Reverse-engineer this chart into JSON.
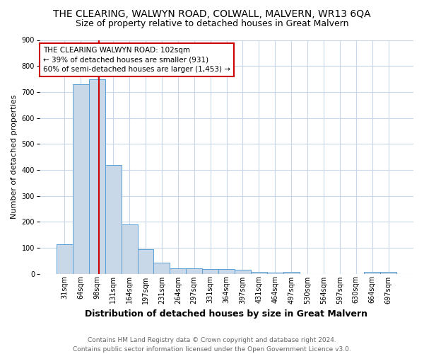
{
  "title": "THE CLEARING, WALWYN ROAD, COLWALL, MALVERN, WR13 6QA",
  "subtitle": "Size of property relative to detached houses in Great Malvern",
  "xlabel": "Distribution of detached houses by size in Great Malvern",
  "ylabel": "Number of detached properties",
  "categories": [
    "31sqm",
    "64sqm",
    "98sqm",
    "131sqm",
    "164sqm",
    "197sqm",
    "231sqm",
    "264sqm",
    "297sqm",
    "331sqm",
    "364sqm",
    "397sqm",
    "431sqm",
    "464sqm",
    "497sqm",
    "530sqm",
    "564sqm",
    "597sqm",
    "630sqm",
    "664sqm",
    "697sqm"
  ],
  "values": [
    113,
    730,
    750,
    420,
    190,
    95,
    43,
    20,
    20,
    18,
    18,
    15,
    8,
    3,
    8,
    0,
    0,
    0,
    0,
    8,
    8
  ],
  "bar_color": "#c8d8e8",
  "bar_edge_color": "#5a9fd4",
  "grid_color": "#c8d8e8",
  "red_line_x": 2.1,
  "annotation_text": "THE CLEARING WALWYN ROAD: 102sqm\n← 39% of detached houses are smaller (931)\n60% of semi-detached houses are larger (1,453) →",
  "annotation_box_color": "#ffffff",
  "annotation_box_edge_color": "#cc0000",
  "red_line_color": "#cc0000",
  "footer_line1": "Contains HM Land Registry data © Crown copyright and database right 2024.",
  "footer_line2": "Contains public sector information licensed under the Open Government Licence v3.0.",
  "ylim": [
    0,
    900
  ],
  "background_color": "#ffffff",
  "title_fontsize": 10,
  "subtitle_fontsize": 9,
  "ylabel_fontsize": 8,
  "xlabel_fontsize": 9,
  "tick_fontsize": 7,
  "annotation_fontsize": 7.5,
  "footer_fontsize": 6.5
}
